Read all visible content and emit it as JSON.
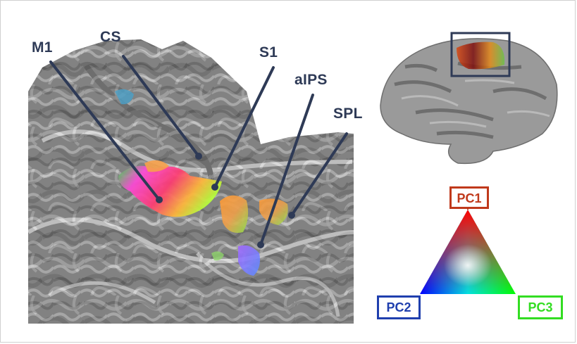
{
  "figure": {
    "roi_labels": {
      "m1": "M1",
      "cs": "CS",
      "s1": "S1",
      "aips": "aIPS",
      "spl": "SPL"
    },
    "color_key": {
      "pc1": {
        "label": "PC1",
        "color": "#c0391b"
      },
      "pc2": {
        "label": "PC2",
        "color": "#1f3fae"
      },
      "pc3": {
        "label": "PC3",
        "color": "#33dd22"
      }
    },
    "leader_line_color": "#2e3a56",
    "inset_box_color": "#2e3a56"
  }
}
